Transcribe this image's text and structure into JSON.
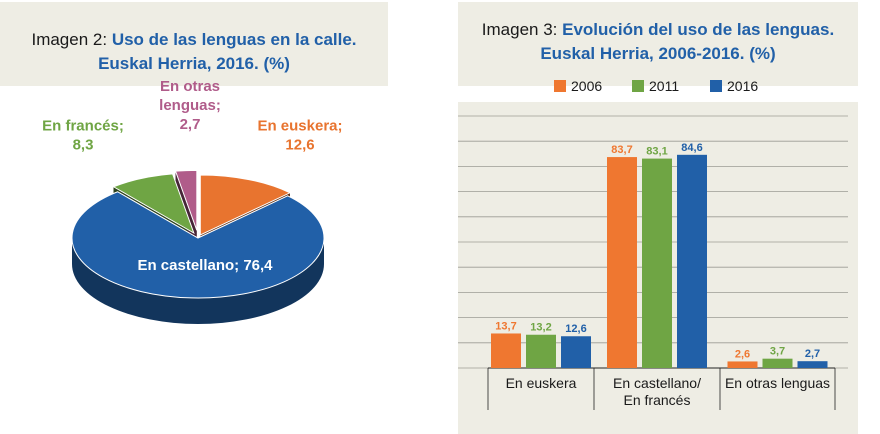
{
  "pie": {
    "title_prefix": "Imagen 2:",
    "title_main": "Uso de las lenguas en la calle.",
    "title_sub": "Euskal Herria, 2016. (%)",
    "labels": [
      {
        "name_lines": [
          "En euskera;"
        ],
        "value": "12,6"
      },
      {
        "name_lines": [
          "En castellano; 76,4"
        ],
        "value": ""
      },
      {
        "name_lines": [
          "En francés;"
        ],
        "value": "8,3"
      },
      {
        "name_lines": [
          "En otras",
          "lenguas;"
        ],
        "value": "2,7"
      }
    ]
  },
  "bars": {
    "title_prefix": "Imagen 3:",
    "title_main": "Evolución del uso de las lenguas.",
    "title_sub": "Euskal Herria, 2006-2016. (%)",
    "category_labels": [
      [
        "En euskera"
      ],
      [
        "En castellano/",
        "En francés"
      ],
      [
        "En otras lenguas"
      ]
    ]
  },
  "chart_data": [
    {
      "type": "pie",
      "title": "Uso de las lenguas en la calle. Euskal Herria, 2016. (%)",
      "slices": [
        {
          "label": "En euskera",
          "value": 12.6,
          "color": "#e8742f"
        },
        {
          "label": "En castellano",
          "value": 76.4,
          "color": "#2160a8"
        },
        {
          "label": "En francés",
          "value": 8.3,
          "color": "#6fa544"
        },
        {
          "label": "En otras lenguas",
          "value": 2.7,
          "color": "#b05c8a"
        }
      ]
    },
    {
      "type": "bar",
      "title": "Evolución del uso de las lenguas. Euskal Herria, 2006-2016. (%)",
      "categories": [
        "En euskera",
        "En castellano/ En francés",
        "En otras lenguas"
      ],
      "series": [
        {
          "name": "2006",
          "color": "#ef7730",
          "values": [
            13.7,
            83.7,
            2.6
          ],
          "labels": [
            "13,7",
            "83,7",
            "2,6"
          ]
        },
        {
          "name": "2011",
          "color": "#6fa544",
          "values": [
            13.2,
            83.1,
            3.7
          ],
          "labels": [
            "13,2",
            "83,1",
            "3,7"
          ]
        },
        {
          "name": "2016",
          "color": "#2160a8",
          "values": [
            12.6,
            84.6,
            2.7
          ],
          "labels": [
            "12,6",
            "84,6",
            "2,7"
          ]
        }
      ],
      "ylim": [
        0,
        100
      ],
      "grid": true,
      "legend": "top"
    }
  ]
}
